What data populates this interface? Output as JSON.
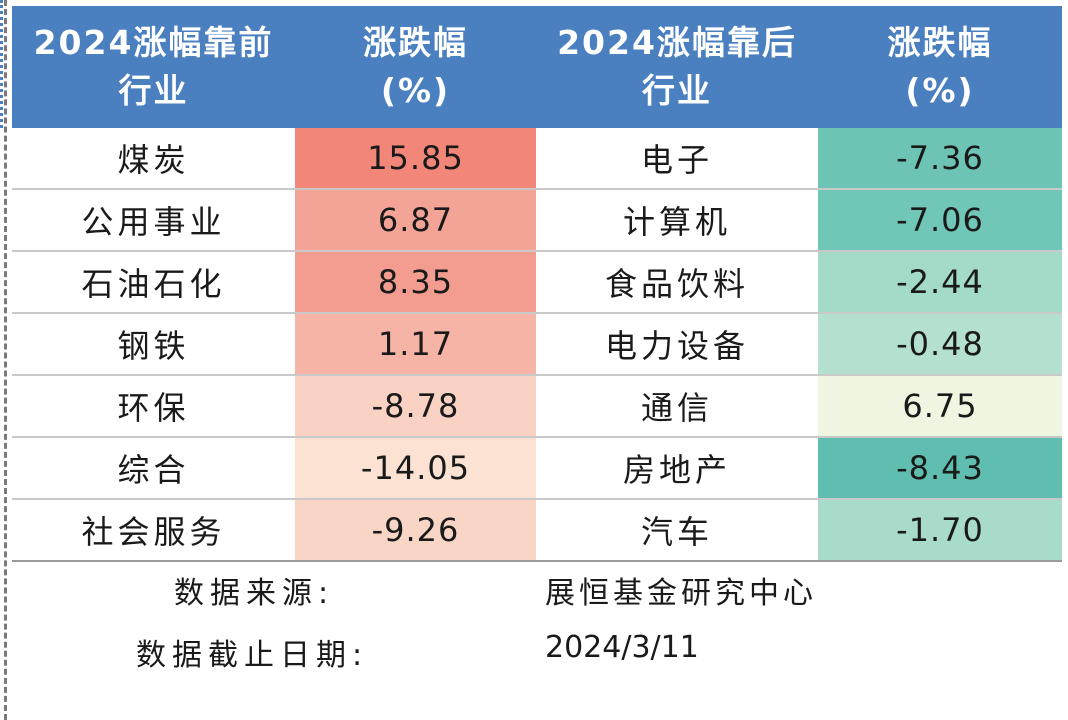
{
  "headers": [
    [
      "2024涨幅靠前",
      "行业"
    ],
    [
      "涨跌幅",
      "(%)"
    ],
    [
      "2024涨幅靠后",
      "行业"
    ],
    [
      "涨跌幅",
      "(%)"
    ]
  ],
  "rows": [
    {
      "top_industry": "煤炭",
      "top_change": "15.85",
      "top_color": "#f28779",
      "bottom_industry": "电子",
      "bottom_change": "-7.36",
      "bottom_color": "#6dc4b5"
    },
    {
      "top_industry": "公用事业",
      "top_change": "6.87",
      "top_color": "#f4a497",
      "bottom_industry": "计算机",
      "bottom_change": "-7.06",
      "bottom_color": "#70c6b7"
    },
    {
      "top_industry": "石油石化",
      "top_change": "8.35",
      "top_color": "#f39d90",
      "bottom_industry": "食品饮料",
      "bottom_change": "-2.44",
      "bottom_color": "#a3dac8"
    },
    {
      "top_industry": "钢铁",
      "top_change": "1.17",
      "top_color": "#f6b4a7",
      "bottom_industry": "电力设备",
      "bottom_change": "-0.48",
      "bottom_color": "#b3e0cf"
    },
    {
      "top_industry": "环保",
      "top_change": "-8.78",
      "top_color": "#f9d2c3",
      "bottom_industry": "通信",
      "bottom_change": "6.75",
      "bottom_color": "#eef5e0"
    },
    {
      "top_industry": "综合",
      "top_change": "-14.05",
      "top_color": "#fbe2d2",
      "bottom_industry": "房地产",
      "bottom_change": "-8.43",
      "bottom_color": "#5fbeaf"
    },
    {
      "top_industry": "社会服务",
      "top_change": "-9.26",
      "top_color": "#f9d5c5",
      "bottom_industry": "汽车",
      "bottom_change": "-1.70",
      "bottom_color": "#a8dbc9"
    }
  ],
  "footer": {
    "source_label": "数据来源:",
    "source_value": "展恒基金研究中心",
    "date_label": "数据截止日期:",
    "date_value": "2024/3/11"
  }
}
